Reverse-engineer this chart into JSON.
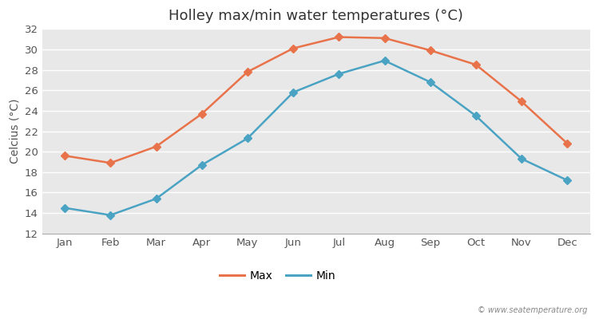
{
  "title": "Holley max/min water temperatures (°C)",
  "ylabel": "Celcius (°C)",
  "months": [
    "Jan",
    "Feb",
    "Mar",
    "Apr",
    "May",
    "Jun",
    "Jul",
    "Aug",
    "Sep",
    "Oct",
    "Nov",
    "Dec"
  ],
  "max_temps": [
    19.6,
    18.9,
    20.5,
    23.7,
    27.8,
    30.1,
    31.2,
    31.1,
    29.9,
    28.5,
    24.9,
    20.8
  ],
  "min_temps": [
    14.5,
    13.8,
    15.4,
    18.7,
    21.3,
    25.8,
    27.6,
    28.9,
    26.8,
    23.5,
    19.3,
    17.2
  ],
  "max_color": "#E8734A",
  "min_color": "#4BA3C3",
  "plot_bg_color": "#E8E8E8",
  "fig_bg_color": "#FFFFFF",
  "ylim": [
    12,
    32
  ],
  "yticks": [
    12,
    14,
    16,
    18,
    20,
    22,
    24,
    26,
    28,
    30,
    32
  ],
  "watermark": "© www.seatemperature.org",
  "legend_labels": [
    "Max",
    "Min"
  ],
  "title_fontsize": 13,
  "axis_label_fontsize": 10,
  "tick_fontsize": 9.5,
  "marker": "D",
  "markersize": 5,
  "linewidth": 1.8,
  "grid_color": "#FFFFFF",
  "grid_linewidth": 1.0,
  "spine_color": "#AAAAAA"
}
